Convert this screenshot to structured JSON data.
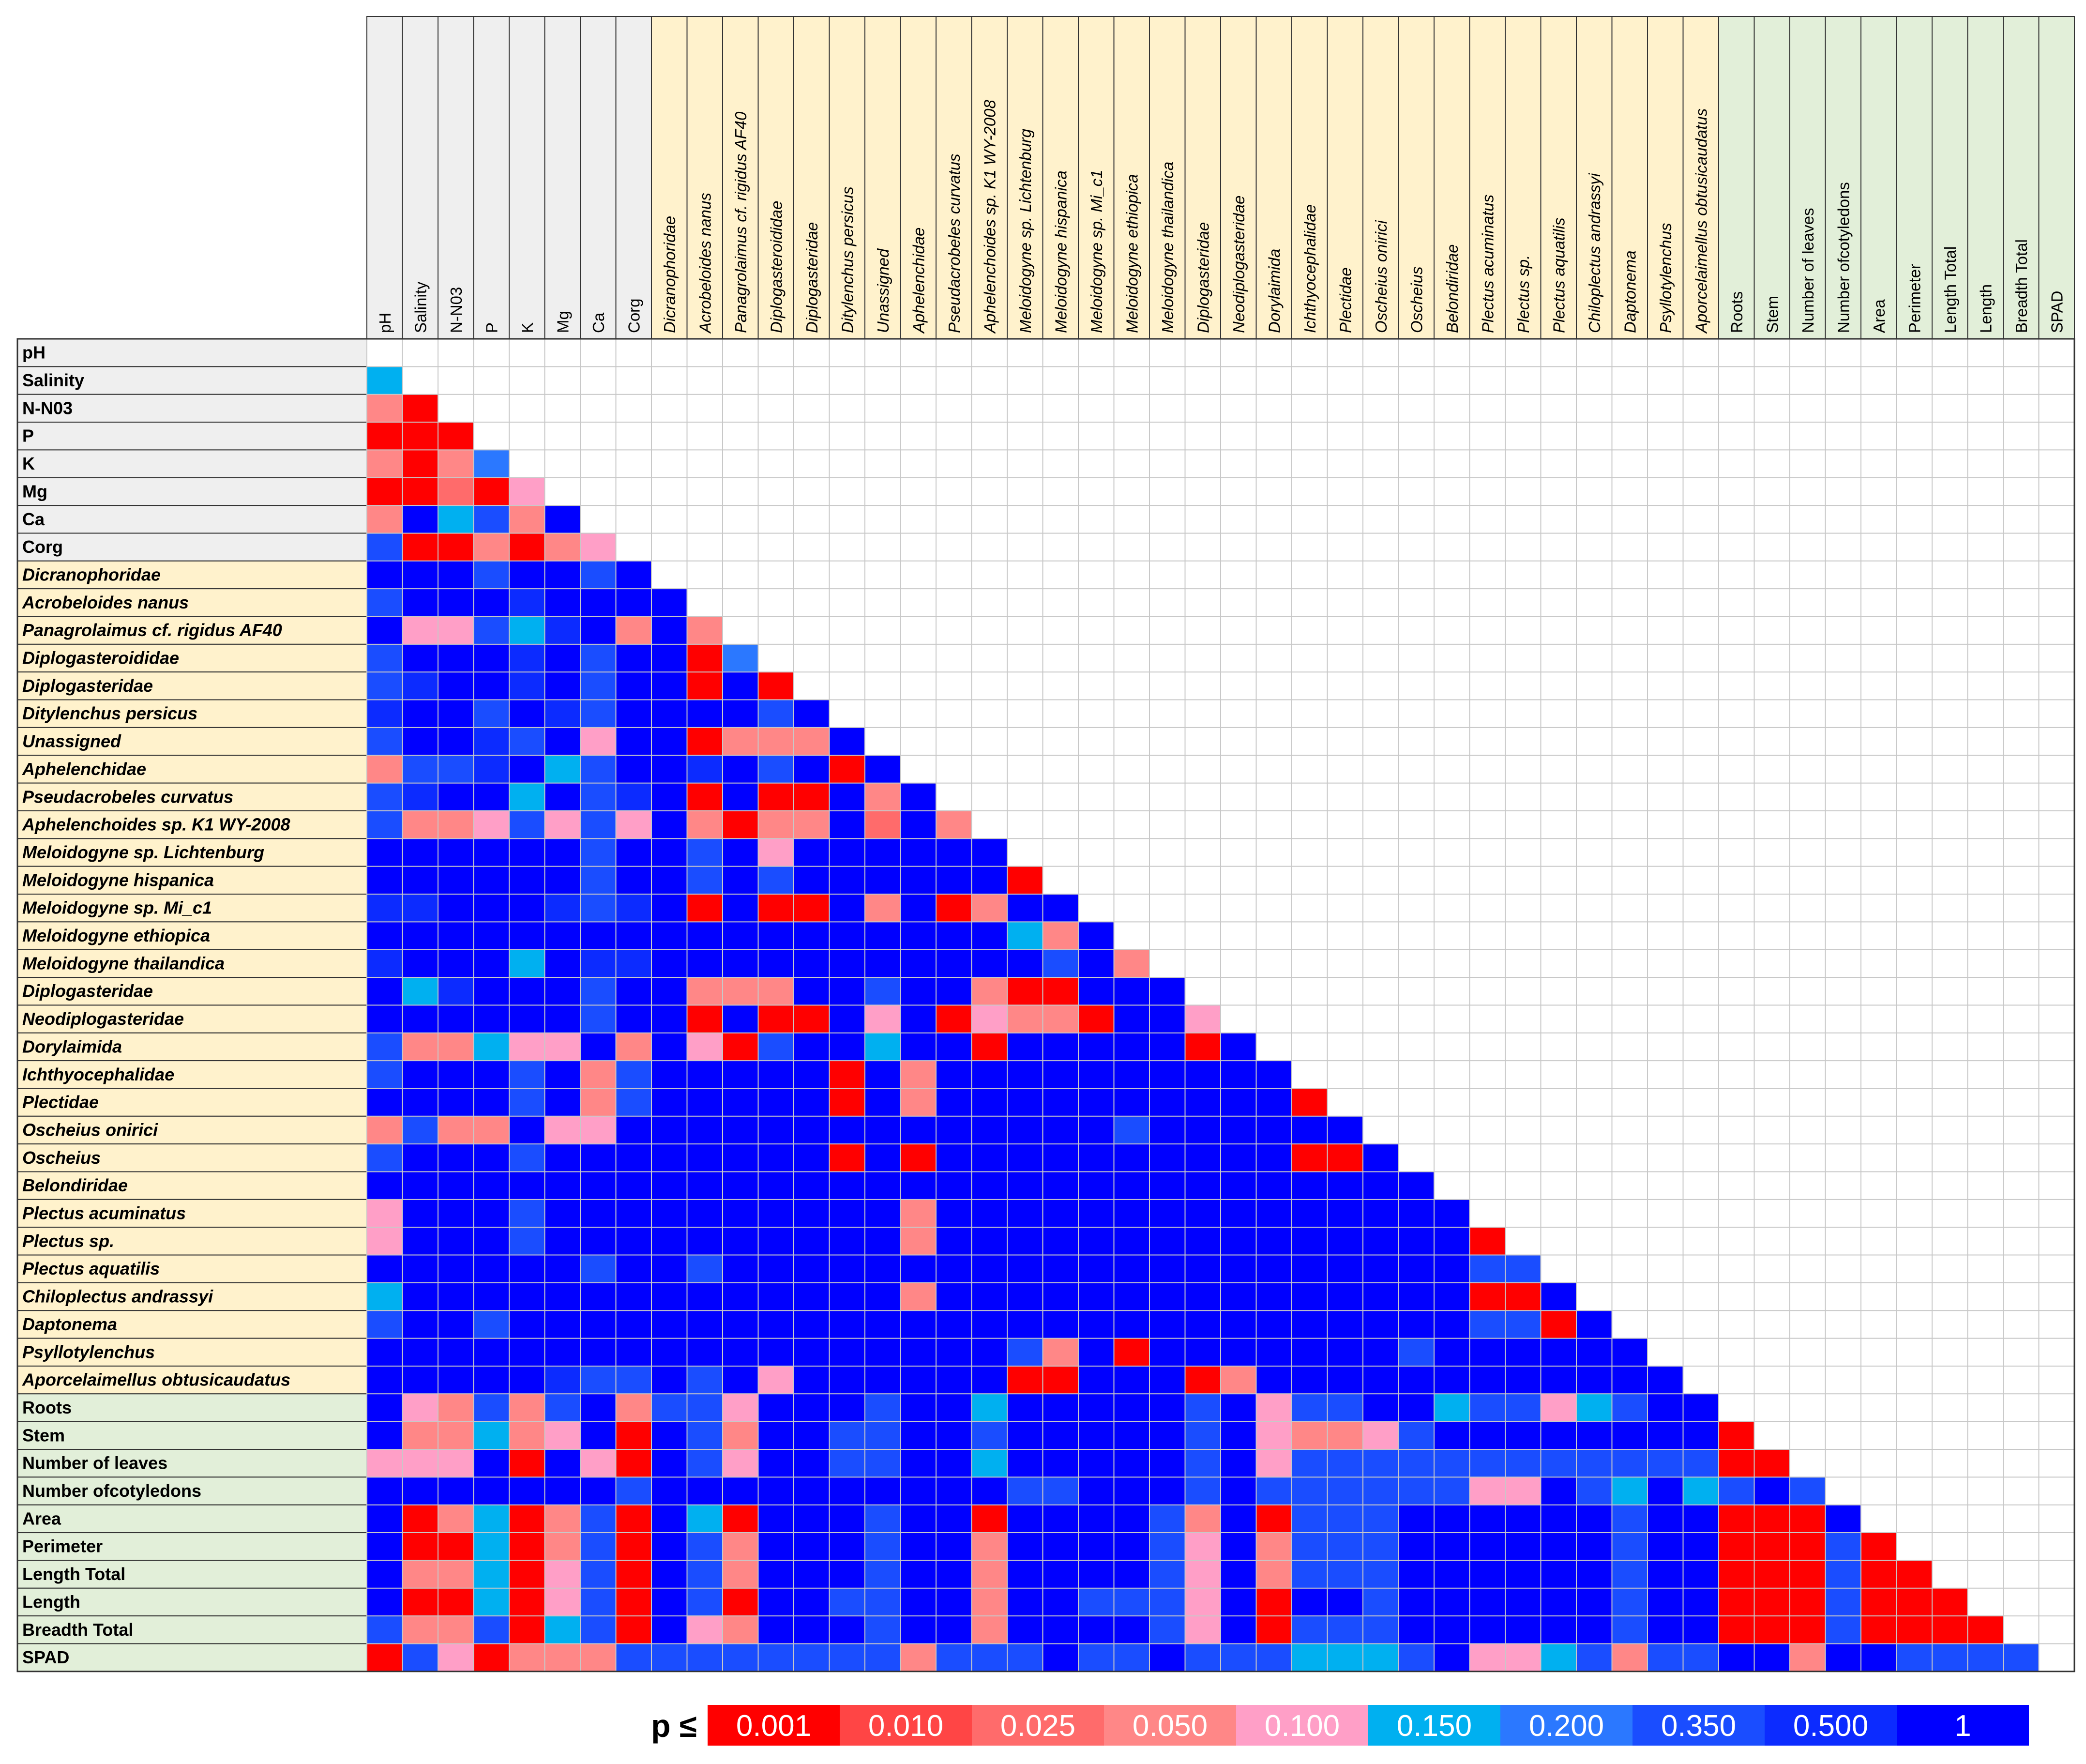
{
  "chart_data": {
    "type": "heatmap",
    "title": "",
    "variables": [
      {
        "name": "pH",
        "group": "soil"
      },
      {
        "name": "Salinity",
        "group": "soil"
      },
      {
        "name": "N-N03",
        "group": "soil"
      },
      {
        "name": "P",
        "group": "soil"
      },
      {
        "name": "K",
        "group": "soil"
      },
      {
        "name": "Mg",
        "group": "soil"
      },
      {
        "name": "Ca",
        "group": "soil"
      },
      {
        "name": "Corg",
        "group": "soil"
      },
      {
        "name": "Dicranophoridae",
        "group": "taxa"
      },
      {
        "name": "Acrobeloides nanus",
        "group": "taxa"
      },
      {
        "name": "Panagrolaimus cf. rigidus AF40",
        "group": "taxa"
      },
      {
        "name": "Diplogasteroididae",
        "group": "taxa"
      },
      {
        "name": "Diplogasteridae",
        "group": "taxa"
      },
      {
        "name": "Ditylenchus persicus",
        "group": "taxa"
      },
      {
        "name": "Unassigned",
        "group": "taxa"
      },
      {
        "name": "Aphelenchidae",
        "group": "taxa"
      },
      {
        "name": "Pseudacrobeles curvatus",
        "group": "taxa"
      },
      {
        "name": "Aphelenchoides sp. K1 WY-2008",
        "group": "taxa"
      },
      {
        "name": "Meloidogyne sp. Lichtenburg",
        "group": "taxa"
      },
      {
        "name": "Meloidogyne hispanica",
        "group": "taxa"
      },
      {
        "name": "Meloidogyne sp. Mi_c1",
        "group": "taxa"
      },
      {
        "name": "Meloidogyne ethiopica",
        "group": "taxa"
      },
      {
        "name": "Meloidogyne thailandica",
        "group": "taxa"
      },
      {
        "name": "Diplogasteridae",
        "group": "taxa"
      },
      {
        "name": "Neodiplogasteridae",
        "group": "taxa"
      },
      {
        "name": "Dorylaimida",
        "group": "taxa"
      },
      {
        "name": "Ichthyocephalidae",
        "group": "taxa"
      },
      {
        "name": "Plectidae",
        "group": "taxa"
      },
      {
        "name": "Oscheius onirici",
        "group": "taxa"
      },
      {
        "name": "Oscheius",
        "group": "taxa"
      },
      {
        "name": "Belondiridae",
        "group": "taxa"
      },
      {
        "name": "Plectus acuminatus",
        "group": "taxa"
      },
      {
        "name": "Plectus sp.",
        "group": "taxa"
      },
      {
        "name": "Plectus aquatilis",
        "group": "taxa"
      },
      {
        "name": "Chiloplectus andrassyi",
        "group": "taxa"
      },
      {
        "name": "Daptonema",
        "group": "taxa"
      },
      {
        "name": "Psyllotylenchus",
        "group": "taxa"
      },
      {
        "name": "Aporcelaimellus obtusicaudatus",
        "group": "taxa"
      },
      {
        "name": "Roots",
        "group": "plant"
      },
      {
        "name": "Stem",
        "group": "plant"
      },
      {
        "name": "Number of leaves",
        "group": "plant"
      },
      {
        "name": "Number ofcotyledons",
        "group": "plant"
      },
      {
        "name": "Area",
        "group": "plant"
      },
      {
        "name": "Perimeter",
        "group": "plant"
      },
      {
        "name": "Length Total",
        "group": "plant"
      },
      {
        "name": "Length",
        "group": "plant"
      },
      {
        "name": "Breadth Total",
        "group": "plant"
      },
      {
        "name": "SPAD",
        "group": "plant"
      }
    ],
    "group_colors": {
      "soil": "#efefef",
      "taxa": "#fff2cc",
      "plant": "#e2efd9"
    },
    "legend": {
      "label": "p ≤",
      "thresholds": [
        "0.001",
        "0.010",
        "0.025",
        "0.050",
        "0.100",
        "0.150",
        "0.200",
        "0.350",
        "0.500",
        "1"
      ],
      "colors": [
        "#ff0000",
        "#ff4545",
        "#ff6b6b",
        "#ff8787",
        "#ff9fc7",
        "#00b0f0",
        "#2b78ff",
        "#1a4dff",
        "#0c2bff",
        "#0000ff"
      ],
      "text_color": "#ffffff"
    },
    "cell_p_levels": [
      [],
      [
        5
      ],
      [
        3,
        0
      ],
      [
        0,
        0,
        0
      ],
      [
        3,
        0,
        3,
        6
      ],
      [
        0,
        0,
        2,
        0,
        4
      ],
      [
        3,
        9,
        5,
        7,
        3,
        9
      ],
      [
        7,
        0,
        0,
        3,
        0,
        3,
        4
      ],
      [
        9,
        9,
        9,
        7,
        9,
        9,
        7,
        9
      ],
      [
        7,
        9,
        9,
        9,
        8,
        9,
        9,
        9,
        9
      ],
      [
        9,
        4,
        4,
        7,
        5,
        8,
        9,
        3,
        9,
        3
      ],
      [
        7,
        9,
        9,
        9,
        8,
        9,
        7,
        9,
        9,
        0,
        6
      ],
      [
        7,
        8,
        9,
        9,
        8,
        9,
        7,
        9,
        9,
        0,
        9,
        0
      ],
      [
        8,
        9,
        9,
        7,
        9,
        8,
        7,
        9,
        9,
        9,
        9,
        7,
        9
      ],
      [
        7,
        9,
        9,
        8,
        7,
        9,
        4,
        9,
        9,
        0,
        3,
        3,
        3,
        9
      ],
      [
        3,
        7,
        7,
        8,
        9,
        5,
        7,
        9,
        9,
        8,
        9,
        7,
        9,
        0,
        9
      ],
      [
        7,
        8,
        9,
        9,
        5,
        9,
        7,
        8,
        9,
        0,
        9,
        0,
        0,
        9,
        3,
        9
      ],
      [
        7,
        3,
        3,
        4,
        7,
        4,
        7,
        4,
        9,
        3,
        0,
        3,
        3,
        9,
        2,
        9,
        3
      ],
      [
        9,
        9,
        9,
        9,
        9,
        9,
        7,
        9,
        9,
        7,
        9,
        4,
        9,
        9,
        9,
        9,
        9,
        9
      ],
      [
        9,
        9,
        9,
        9,
        9,
        9,
        7,
        9,
        9,
        7,
        9,
        7,
        9,
        9,
        9,
        9,
        9,
        9,
        0
      ],
      [
        8,
        8,
        9,
        9,
        9,
        8,
        7,
        8,
        9,
        0,
        9,
        0,
        0,
        9,
        3,
        9,
        0,
        3,
        9,
        9
      ],
      [
        9,
        9,
        9,
        9,
        9,
        9,
        9,
        9,
        9,
        9,
        9,
        9,
        9,
        9,
        9,
        9,
        9,
        9,
        5,
        3,
        9
      ],
      [
        8,
        9,
        9,
        9,
        5,
        9,
        8,
        8,
        9,
        9,
        9,
        9,
        9,
        9,
        9,
        9,
        9,
        9,
        9,
        7,
        9,
        3
      ],
      [
        9,
        5,
        8,
        9,
        9,
        9,
        7,
        9,
        9,
        3,
        3,
        3,
        9,
        9,
        7,
        9,
        9,
        3,
        0,
        0,
        9,
        9,
        9
      ],
      [
        9,
        9,
        9,
        9,
        9,
        9,
        7,
        9,
        9,
        0,
        9,
        0,
        0,
        9,
        4,
        9,
        0,
        4,
        3,
        3,
        0,
        9,
        9,
        4
      ],
      [
        7,
        3,
        3,
        5,
        4,
        4,
        9,
        3,
        9,
        4,
        0,
        7,
        9,
        9,
        5,
        9,
        9,
        0,
        9,
        9,
        9,
        9,
        9,
        0,
        9
      ],
      [
        7,
        9,
        9,
        9,
        7,
        9,
        3,
        7,
        9,
        9,
        9,
        9,
        9,
        0,
        9,
        3,
        9,
        9,
        9,
        9,
        9,
        9,
        9,
        9,
        9,
        9
      ],
      [
        9,
        9,
        9,
        9,
        7,
        9,
        3,
        7,
        9,
        9,
        9,
        9,
        9,
        0,
        9,
        3,
        9,
        9,
        9,
        9,
        9,
        9,
        9,
        9,
        9,
        9,
        0
      ],
      [
        3,
        7,
        3,
        3,
        9,
        4,
        4,
        9,
        9,
        9,
        9,
        9,
        9,
        9,
        9,
        9,
        9,
        9,
        9,
        9,
        9,
        7,
        9,
        9,
        9,
        9,
        9,
        9
      ],
      [
        7,
        9,
        9,
        9,
        7,
        9,
        9,
        9,
        9,
        9,
        9,
        9,
        9,
        0,
        9,
        0,
        9,
        9,
        9,
        9,
        9,
        9,
        9,
        9,
        9,
        9,
        0,
        0,
        9
      ],
      [
        9,
        9,
        9,
        9,
        9,
        9,
        9,
        9,
        9,
        9,
        9,
        9,
        9,
        9,
        9,
        9,
        9,
        9,
        9,
        9,
        9,
        9,
        9,
        9,
        9,
        9,
        9,
        9,
        9,
        9
      ],
      [
        4,
        9,
        9,
        9,
        7,
        9,
        9,
        9,
        9,
        9,
        9,
        9,
        9,
        9,
        9,
        3,
        9,
        9,
        9,
        9,
        9,
        9,
        9,
        9,
        9,
        9,
        9,
        9,
        9,
        9,
        9
      ],
      [
        4,
        9,
        9,
        9,
        7,
        9,
        9,
        9,
        9,
        9,
        9,
        9,
        9,
        9,
        9,
        3,
        9,
        9,
        9,
        9,
        9,
        9,
        9,
        9,
        9,
        9,
        9,
        9,
        9,
        9,
        9,
        0
      ],
      [
        9,
        9,
        9,
        9,
        9,
        9,
        7,
        9,
        9,
        7,
        9,
        9,
        9,
        9,
        9,
        9,
        9,
        9,
        9,
        9,
        9,
        9,
        9,
        9,
        9,
        9,
        9,
        9,
        9,
        9,
        9,
        7,
        7
      ],
      [
        5,
        9,
        9,
        9,
        9,
        9,
        9,
        9,
        9,
        9,
        9,
        9,
        9,
        9,
        9,
        3,
        9,
        9,
        9,
        9,
        9,
        9,
        9,
        9,
        9,
        9,
        9,
        9,
        9,
        9,
        9,
        0,
        0,
        9
      ],
      [
        7,
        9,
        9,
        7,
        9,
        9,
        9,
        9,
        9,
        9,
        9,
        9,
        9,
        9,
        9,
        9,
        9,
        9,
        9,
        9,
        9,
        9,
        9,
        9,
        9,
        9,
        9,
        9,
        9,
        9,
        9,
        7,
        7,
        0,
        9
      ],
      [
        9,
        9,
        9,
        9,
        9,
        9,
        9,
        9,
        9,
        9,
        9,
        9,
        9,
        9,
        9,
        9,
        9,
        9,
        7,
        3,
        9,
        0,
        9,
        9,
        9,
        9,
        9,
        9,
        9,
        7,
        9,
        9,
        9,
        9,
        9,
        9
      ],
      [
        9,
        9,
        9,
        9,
        9,
        8,
        7,
        7,
        9,
        7,
        9,
        4,
        9,
        9,
        9,
        9,
        9,
        9,
        0,
        0,
        9,
        9,
        9,
        0,
        3,
        9,
        9,
        9,
        9,
        9,
        9,
        9,
        9,
        9,
        9,
        9,
        9
      ],
      [
        9,
        4,
        3,
        7,
        3,
        7,
        9,
        3,
        7,
        7,
        4,
        9,
        9,
        9,
        7,
        9,
        9,
        5,
        9,
        9,
        9,
        9,
        9,
        7,
        9,
        4,
        7,
        7,
        9,
        9,
        5,
        7,
        7,
        4,
        5,
        7,
        9,
        9
      ],
      [
        9,
        3,
        3,
        5,
        3,
        4,
        9,
        0,
        9,
        7,
        3,
        9,
        9,
        7,
        7,
        9,
        9,
        7,
        9,
        9,
        9,
        9,
        9,
        7,
        9,
        4,
        3,
        3,
        4,
        7,
        9,
        9,
        9,
        9,
        9,
        9,
        9,
        9,
        0
      ],
      [
        4,
        4,
        4,
        9,
        0,
        9,
        4,
        0,
        9,
        7,
        4,
        9,
        9,
        7,
        7,
        9,
        9,
        5,
        9,
        9,
        9,
        9,
        9,
        7,
        9,
        4,
        7,
        7,
        7,
        7,
        7,
        7,
        7,
        7,
        7,
        7,
        7,
        7,
        0,
        0
      ],
      [
        9,
        9,
        9,
        9,
        9,
        9,
        9,
        7,
        9,
        9,
        9,
        9,
        9,
        9,
        9,
        9,
        9,
        9,
        7,
        7,
        9,
        9,
        9,
        7,
        9,
        7,
        7,
        7,
        7,
        7,
        7,
        4,
        4,
        9,
        7,
        5,
        9,
        5,
        7,
        9,
        7
      ],
      [
        9,
        0,
        3,
        5,
        0,
        3,
        7,
        0,
        9,
        5,
        0,
        9,
        9,
        9,
        7,
        9,
        9,
        0,
        9,
        9,
        9,
        9,
        7,
        3,
        9,
        0,
        7,
        7,
        7,
        9,
        9,
        9,
        9,
        9,
        9,
        7,
        9,
        9,
        0,
        0,
        0,
        9
      ],
      [
        9,
        0,
        0,
        5,
        0,
        3,
        7,
        0,
        9,
        7,
        3,
        9,
        9,
        9,
        7,
        9,
        9,
        3,
        9,
        9,
        9,
        9,
        7,
        4,
        9,
        3,
        7,
        7,
        7,
        9,
        9,
        9,
        9,
        9,
        9,
        7,
        9,
        9,
        0,
        0,
        0,
        7,
        0
      ],
      [
        9,
        3,
        3,
        5,
        0,
        4,
        7,
        0,
        9,
        7,
        3,
        9,
        9,
        9,
        7,
        9,
        9,
        3,
        9,
        9,
        9,
        9,
        7,
        4,
        9,
        3,
        7,
        7,
        7,
        9,
        9,
        9,
        9,
        9,
        9,
        7,
        9,
        9,
        0,
        0,
        0,
        7,
        0,
        0
      ],
      [
        9,
        0,
        0,
        5,
        0,
        4,
        7,
        0,
        9,
        7,
        0,
        9,
        9,
        7,
        7,
        9,
        9,
        3,
        9,
        9,
        7,
        7,
        7,
        4,
        9,
        0,
        9,
        9,
        7,
        9,
        9,
        9,
        9,
        9,
        9,
        7,
        9,
        9,
        0,
        0,
        0,
        7,
        0,
        0,
        0
      ],
      [
        7,
        3,
        3,
        7,
        0,
        5,
        7,
        0,
        9,
        4,
        3,
        9,
        9,
        9,
        7,
        9,
        9,
        3,
        9,
        9,
        9,
        9,
        7,
        4,
        9,
        0,
        7,
        7,
        7,
        9,
        9,
        9,
        9,
        9,
        9,
        7,
        9,
        9,
        0,
        0,
        0,
        7,
        0,
        0,
        0,
        0
      ],
      [
        0,
        7,
        4,
        0,
        3,
        3,
        3,
        7,
        7,
        7,
        7,
        7,
        7,
        7,
        7,
        3,
        7,
        7,
        7,
        9,
        7,
        7,
        9,
        7,
        7,
        7,
        5,
        5,
        5,
        7,
        9,
        4,
        4,
        5,
        7,
        3,
        7,
        7,
        9,
        9,
        3,
        9,
        9,
        7,
        7,
        7,
        7
      ]
    ]
  }
}
